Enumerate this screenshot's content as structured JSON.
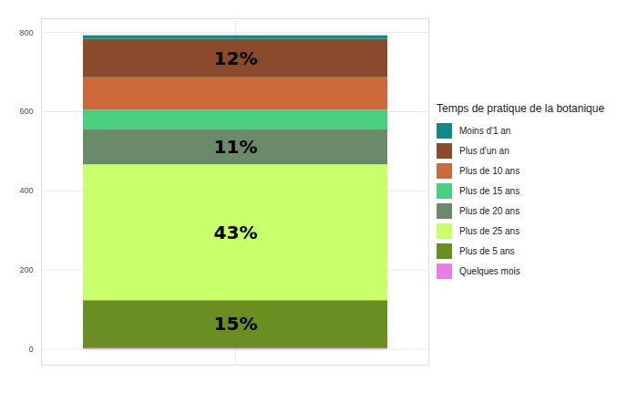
{
  "chart_data": {
    "type": "bar",
    "stacked": true,
    "categories": [
      null
    ],
    "series": [
      {
        "name": "Moins d'1 an",
        "color": "#0e8a8a",
        "values": [
          9
        ]
      },
      {
        "name": "Plus d'un an",
        "color": "#8b4a2b",
        "values": [
          97
        ]
      },
      {
        "name": "Plus de 10 ans",
        "color": "#cd6a3c",
        "values": [
          82
        ]
      },
      {
        "name": "Plus de 15 ans",
        "color": "#48cf80",
        "values": [
          50
        ]
      },
      {
        "name": "Plus de 20 ans",
        "color": "#6a8a6a",
        "values": [
          88
        ]
      },
      {
        "name": "Plus de 25 ans",
        "color": "#c9ff6a",
        "values": [
          343
        ]
      },
      {
        "name": "Plus de 5 ans",
        "color": "#6b8e23",
        "values": [
          121
        ]
      },
      {
        "name": "Quelques mois",
        "color": "#ee7ae9",
        "values": [
          2
        ]
      }
    ],
    "annotations": [
      {
        "text": "12%",
        "series": "Plus d'un an"
      },
      {
        "text": "11%",
        "series": "Plus de 20 ans"
      },
      {
        "text": "43%",
        "series": "Plus de 25 ans"
      },
      {
        "text": "15%",
        "series": "Plus de 5 ans"
      }
    ],
    "legend_title": "Temps de pratique de la botanique",
    "legend": "right",
    "ylim": [
      -40,
      835
    ],
    "yticks": [
      0,
      200,
      400,
      600,
      800
    ],
    "grid": true,
    "tick_labels": "y"
  }
}
